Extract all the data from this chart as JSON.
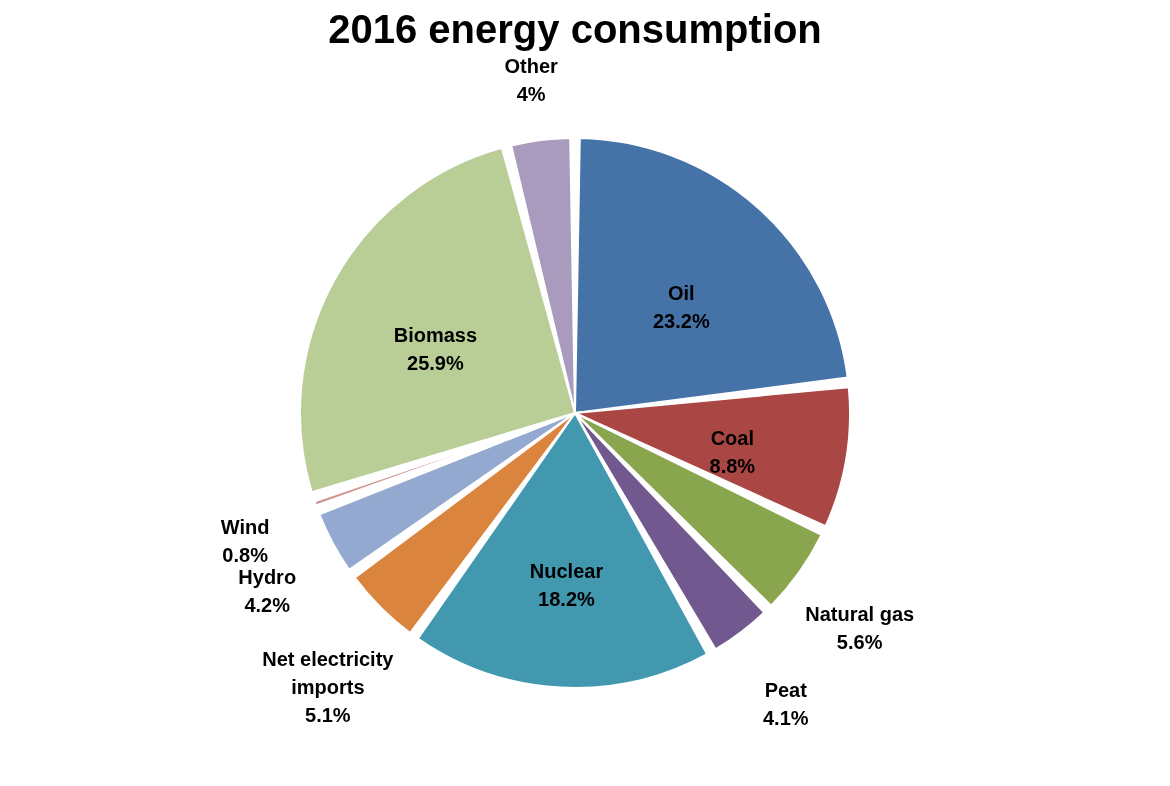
{
  "chart_data": {
    "type": "pie",
    "title": "2016 energy consumption",
    "categories": [
      "Oil",
      "Coal",
      "Natural gas",
      "Peat",
      "Nuclear",
      "Net electricity imports",
      "Hydro",
      "Wind",
      "Biomass",
      "Other"
    ],
    "values": [
      23.2,
      8.8,
      5.6,
      4.1,
      18.2,
      5.1,
      4.2,
      0.8,
      25.9,
      4
    ],
    "value_labels": [
      "23.2%",
      "8.8%",
      "5.6%",
      "4.1%",
      "18.2%",
      "5.1%",
      "4.2%",
      "0.8%",
      "25.9%",
      "4%"
    ],
    "colors": [
      "#4572a7",
      "#aa4643",
      "#89a54e",
      "#71588f",
      "#4198af",
      "#db843d",
      "#93a9cf",
      "#d19392",
      "#b9cd96",
      "#a99bbd"
    ]
  }
}
